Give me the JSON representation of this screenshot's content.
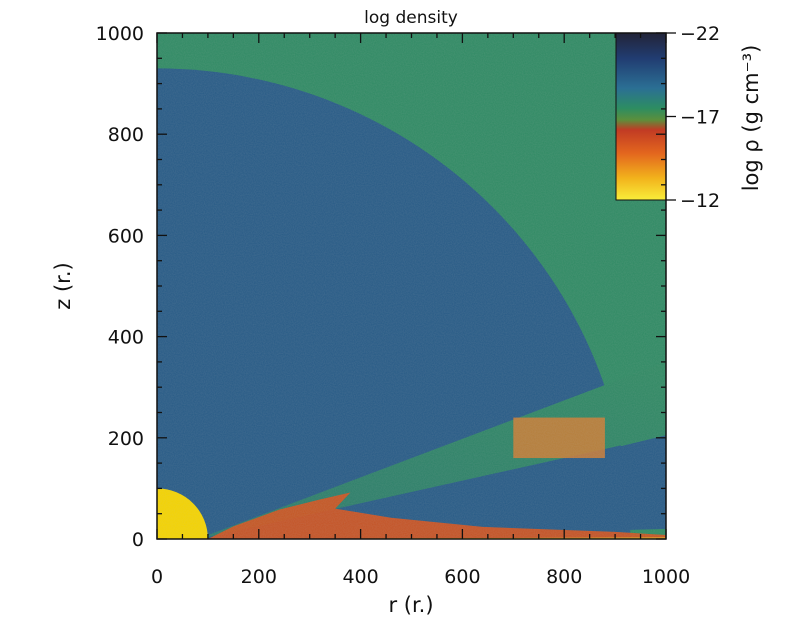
{
  "chart_data": {
    "type": "heatmap",
    "title": "log density",
    "xlabel": "r (r.)",
    "ylabel": "z (r.)",
    "xlim": [
      0,
      1000
    ],
    "ylim": [
      0,
      1000
    ],
    "xticks": [
      "0",
      "200",
      "400",
      "600",
      "800",
      "1000"
    ],
    "yticks": [
      "0",
      "200",
      "400",
      "600",
      "800",
      "1000"
    ],
    "colorbar": {
      "label": "log ρ (g cm⁻³)",
      "range": [
        -22,
        -12
      ],
      "ticks": [
        "-22",
        "-17",
        "-12"
      ],
      "placement": "top-right-inset"
    },
    "regions": [
      {
        "value": -17.3,
        "shape": "background",
        "color": "#2e8a63"
      },
      {
        "value": -19.6,
        "shape": "quarter-disk",
        "radius": 930,
        "color": "#265a86"
      },
      {
        "value": -17.8,
        "shape": "wedge",
        "color": "#2f7a6a"
      },
      {
        "value": -12,
        "shape": "central-star",
        "radius": 100,
        "color": "#f5d400"
      },
      {
        "value": -14.5,
        "shape": "equatorial-torus",
        "color": "#d2521d"
      },
      {
        "value": -15.5,
        "shape": "dense-clump",
        "r": [
          700,
          880
        ],
        "z": [
          160,
          240
        ],
        "color": "#cf7d33"
      }
    ]
  }
}
